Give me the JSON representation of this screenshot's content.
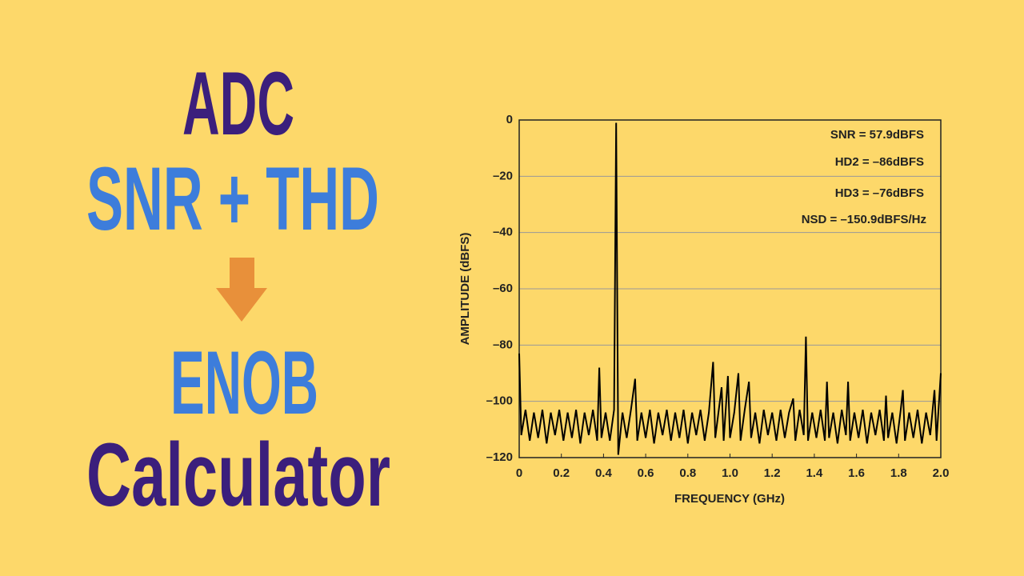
{
  "headline": [
    {
      "text": "ADC",
      "color": "#3b1f7c"
    },
    {
      "text": "SNR + THD",
      "color": "#3d7ddb"
    },
    {
      "text": "ENOB",
      "color": "#3d7ddb"
    },
    {
      "text": "Calculator",
      "color": "#3b1f7c"
    }
  ],
  "chart_data": {
    "type": "line",
    "xlabel": "FREQUENCY (GHz)",
    "ylabel": "AMPLITUDE (dBFS)",
    "annotations": [
      "SNR = 57.9dBFS",
      "HD2 = –86dBFS",
      "HD3 = –76dBFS",
      "NSD = –150.9dBFS/Hz"
    ],
    "xlim": [
      0,
      2
    ],
    "ylim": [
      -120,
      0
    ],
    "xticks": [
      0,
      0.2,
      0.4,
      0.6,
      0.8,
      {
        "value": 1,
        "label": "1.0"
      },
      1.2,
      1.4,
      1.6,
      1.8,
      {
        "value": 2,
        "label": "2.0"
      }
    ],
    "yticks": [
      0,
      {
        "value": -20,
        "label": "–20"
      },
      {
        "value": -40,
        "label": "–40"
      },
      {
        "value": -60,
        "label": "–60"
      },
      {
        "value": -80,
        "label": "–80"
      },
      {
        "value": -100,
        "label": "–100"
      },
      {
        "value": -120,
        "label": "–120"
      }
    ],
    "grid": true,
    "x": [
      0,
      0.01,
      0.03,
      0.05,
      0.07,
      0.09,
      0.11,
      0.13,
      0.15,
      0.17,
      0.19,
      0.21,
      0.23,
      0.25,
      0.27,
      0.29,
      0.31,
      0.33,
      0.35,
      0.37,
      0.38,
      0.39,
      0.41,
      0.43,
      0.45,
      0.46,
      0.47,
      0.49,
      0.51,
      0.53,
      0.55,
      0.56,
      0.58,
      0.6,
      0.62,
      0.64,
      0.66,
      0.68,
      0.7,
      0.72,
      0.74,
      0.76,
      0.78,
      0.8,
      0.82,
      0.84,
      0.86,
      0.88,
      0.9,
      0.92,
      0.93,
      0.96,
      0.97,
      0.99,
      1,
      1.02,
      1.04,
      1.05,
      1.07,
      1.09,
      1.1,
      1.12,
      1.14,
      1.16,
      1.18,
      1.2,
      1.22,
      1.24,
      1.26,
      1.28,
      1.3,
      1.31,
      1.33,
      1.35,
      1.36,
      1.37,
      1.39,
      1.41,
      1.43,
      1.45,
      1.46,
      1.47,
      1.49,
      1.51,
      1.53,
      1.55,
      1.56,
      1.57,
      1.59,
      1.61,
      1.63,
      1.65,
      1.67,
      1.69,
      1.71,
      1.73,
      1.74,
      1.75,
      1.77,
      1.79,
      1.81,
      1.82,
      1.83,
      1.85,
      1.87,
      1.89,
      1.91,
      1.93,
      1.95,
      1.97,
      1.98,
      2
    ],
    "series": [
      {
        "color": "#000000",
        "values": [
          -83,
          -112,
          -103,
          -114,
          -104,
          -113,
          -103,
          -115,
          -104,
          -112,
          -103,
          -114,
          -104,
          -113,
          -103,
          -115,
          -104,
          -112,
          -103,
          -114,
          -88,
          -113,
          -104,
          -114,
          -103,
          -1,
          -119,
          -104,
          -113,
          -103,
          -92,
          -114,
          -104,
          -113,
          -103,
          -115,
          -104,
          -112,
          -103,
          -114,
          -104,
          -113,
          -103,
          -115,
          -104,
          -112,
          -103,
          -114,
          -104,
          -86,
          -113,
          -95,
          -114,
          -91,
          -113,
          -104,
          -90,
          -114,
          -103,
          -93,
          -113,
          -104,
          -115,
          -103,
          -112,
          -104,
          -114,
          -103,
          -113,
          -104,
          -99,
          -114,
          -103,
          -112,
          -77,
          -114,
          -104,
          -113,
          -103,
          -114,
          -93,
          -113,
          -104,
          -115,
          -103,
          -112,
          -93,
          -114,
          -104,
          -113,
          -103,
          -115,
          -104,
          -112,
          -103,
          -114,
          -98,
          -113,
          -104,
          -115,
          -103,
          -96,
          -114,
          -104,
          -113,
          -103,
          -115,
          -104,
          -112,
          -96,
          -114,
          -90
        ]
      }
    ]
  }
}
